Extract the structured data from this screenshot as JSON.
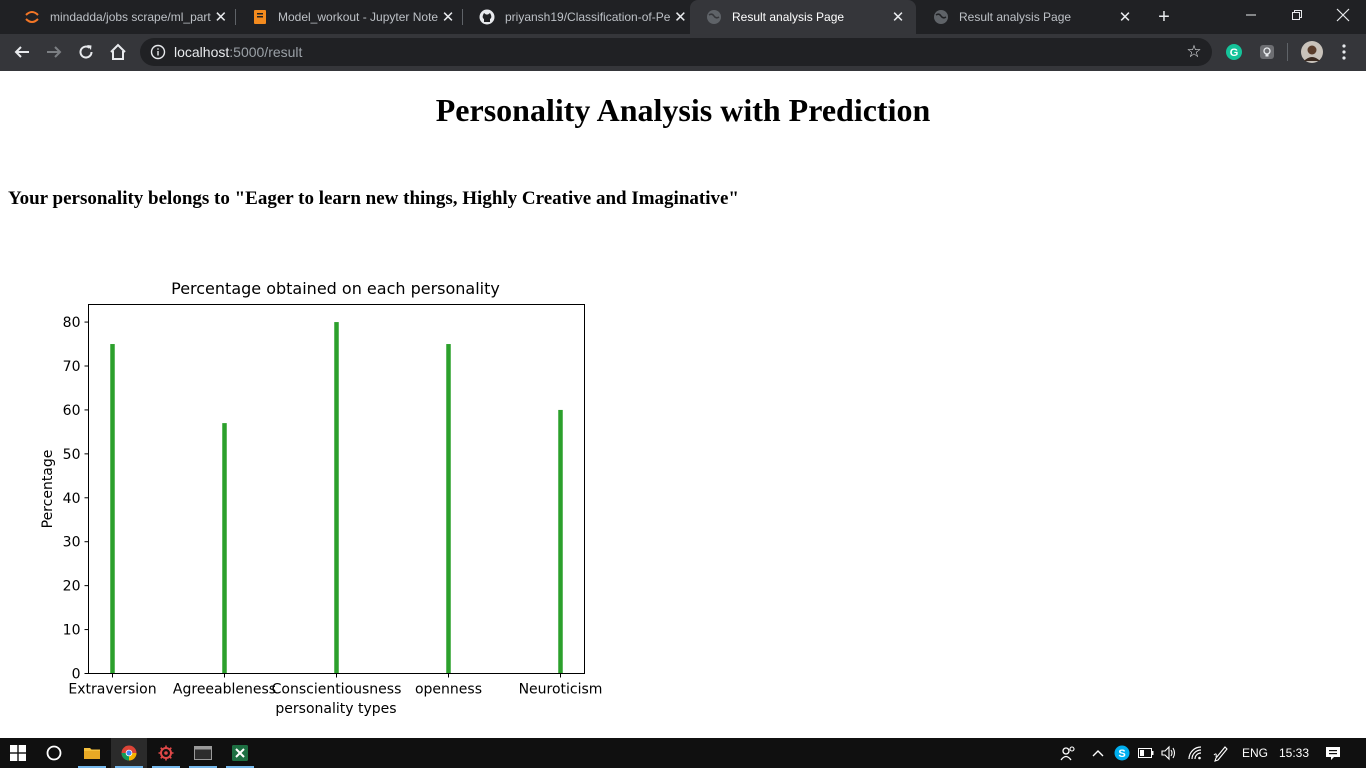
{
  "browser": {
    "tabs": [
      {
        "title": "mindadda/jobs scrape/ml_part",
        "icon": "jupyter-icon",
        "active": false
      },
      {
        "title": "Model_workout - Jupyter Note",
        "icon": "notebook-icon",
        "active": false
      },
      {
        "title": "priyansh19/Classification-of-Pe",
        "icon": "github-icon",
        "active": false
      },
      {
        "title": "Result analysis Page",
        "icon": "globe-icon",
        "active": true
      },
      {
        "title": "Result analysis Page",
        "icon": "globe-icon",
        "active": false
      }
    ],
    "url_host": "localhost",
    "url_rest": ":5000/result"
  },
  "page": {
    "title": "Personality Analysis with Prediction",
    "result": "Your personality belongs to \"Eager to learn new things, Highly Creative and Imaginative\""
  },
  "chart_data": {
    "type": "bar",
    "title": "Percentage obtained on each personality",
    "xlabel": "personality types",
    "ylabel": "Percentage",
    "categories": [
      "Extraversion",
      "Agreeableness",
      "Conscientiousness",
      "openness",
      "Neuroticism"
    ],
    "values": [
      75,
      57,
      80,
      75,
      60
    ],
    "ylim": [
      0,
      84
    ],
    "yticks": [
      0,
      10,
      20,
      30,
      40,
      50,
      60,
      70,
      80
    ],
    "bar_color": "#2ca02c",
    "grid": false
  },
  "taskbar": {
    "lang": "ENG",
    "time": "15:33"
  },
  "colors": {
    "tabstrip": "#202124",
    "toolbar": "#35363a",
    "taskbar": "#101010",
    "accent": "#76b9ed"
  }
}
